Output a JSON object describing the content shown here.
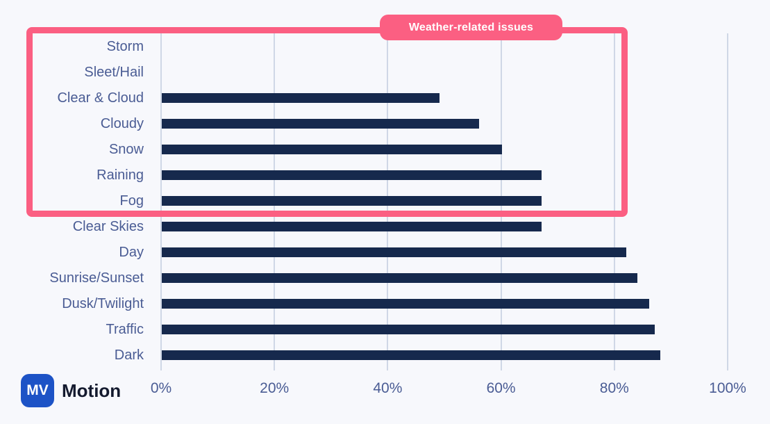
{
  "chart_data": {
    "type": "bar",
    "orientation": "horizontal",
    "title": "",
    "xlabel": "",
    "ylabel": "",
    "categories": [
      "Storm",
      "Sleet/Hail",
      "Clear & Cloud",
      "Cloudy",
      "Snow",
      "Raining",
      "Fog",
      "Clear Skies",
      "Day",
      "Sunrise/Sunset",
      "Dusk/Twilight",
      "Traffic",
      "Dark"
    ],
    "values": [
      0,
      0,
      49,
      56,
      60,
      67,
      67,
      67,
      82,
      84,
      86,
      87,
      88
    ],
    "value_unit": "%",
    "xlim": [
      0,
      100
    ],
    "x_ticks": [
      "0%",
      "20%",
      "40%",
      "60%",
      "80%",
      "100%"
    ],
    "x_tick_values": [
      0,
      20,
      40,
      60,
      80,
      100
    ],
    "grid": true,
    "legend": false,
    "bar_color": "#16294d",
    "axis_label_color": "#4a5c94",
    "gridline_color": "#cfd7e6",
    "background_color": "#f7f8fc"
  },
  "highlight": {
    "label": "Weather-related issues",
    "color": "#fb5f82",
    "highlighted_categories": [
      "Storm",
      "Sleet/Hail",
      "Clear & Cloud",
      "Cloudy",
      "Snow",
      "Raining",
      "Fog"
    ]
  },
  "branding": {
    "logo_text": "MV",
    "logo_color": "#1d53c6",
    "brand_name": "Motion",
    "brand_name_color": "#141a2e"
  }
}
